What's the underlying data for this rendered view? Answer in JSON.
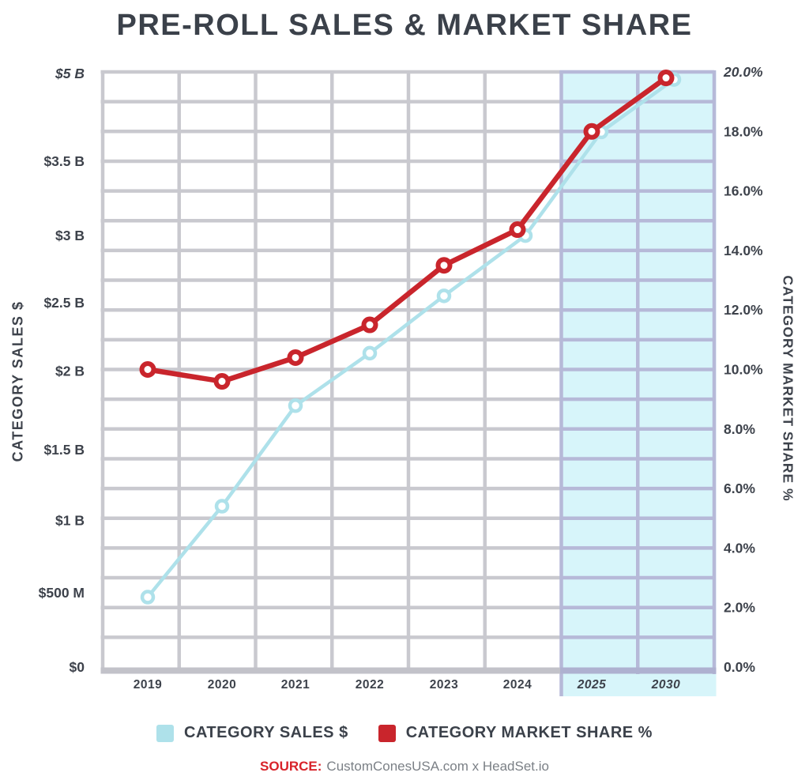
{
  "title": "PRE-ROLL SALES & MARKET SHARE",
  "colors": {
    "background": "#ffffff",
    "title_text": "#3b414a",
    "axis_text": "#3d424b",
    "grid_line": "#c9c9cf",
    "grid_bottom_band": "#c2c2c9",
    "projection_fill": "#d7f5fa",
    "projection_grid_line": "#b6b9d8",
    "projection_bottom_band": "#aeb1d0",
    "sales_line": "#aee1ea",
    "share_line": "#c9252c",
    "marker_core": "#ffffff",
    "source_label": "#d8232a",
    "source_text": "#7b8086"
  },
  "chart_data": {
    "type": "line",
    "title": "PRE-ROLL SALES & MARKET SHARE",
    "categories": [
      {
        "label": "2019",
        "italic": false
      },
      {
        "label": "2020",
        "italic": false
      },
      {
        "label": "2021",
        "italic": false
      },
      {
        "label": "2022",
        "italic": false
      },
      {
        "label": "2023",
        "italic": false
      },
      {
        "label": "2024",
        "italic": false
      },
      {
        "label": "2025",
        "italic": true
      },
      {
        "label": "2030",
        "italic": true
      }
    ],
    "projected_categories": [
      "2025",
      "2030"
    ],
    "grid": {
      "rows": 20,
      "cols": 8,
      "projection_cols": 2,
      "grid_on": true
    },
    "left_axis": {
      "title": "CATEGORY SALES $",
      "unit": "USD",
      "ticks": [
        {
          "label": "$5 B",
          "value_billions": 5.0,
          "pos_pct": 19.95,
          "italic": true
        },
        {
          "label": "$3.5 B",
          "value_billions": 3.5,
          "pos_pct": 17.0,
          "italic": false
        },
        {
          "label": "$3 B",
          "value_billions": 3.0,
          "pos_pct": 14.5,
          "italic": false
        },
        {
          "label": "$2.5 B",
          "value_billions": 2.5,
          "pos_pct": 12.25,
          "italic": false
        },
        {
          "label": "$2 B",
          "value_billions": 2.0,
          "pos_pct": 9.95,
          "italic": false
        },
        {
          "label": "$1.5 B",
          "value_billions": 1.5,
          "pos_pct": 7.3,
          "italic": false
        },
        {
          "label": "$1 B",
          "value_billions": 1.0,
          "pos_pct": 4.93,
          "italic": false
        },
        {
          "label": "$500 M",
          "value_billions": 0.5,
          "pos_pct": 2.5,
          "italic": false
        },
        {
          "label": "$0",
          "value_billions": 0.0,
          "pos_pct": 0.0,
          "italic": false
        }
      ]
    },
    "right_axis": {
      "title": "CATEGORY MARKET SHARE %",
      "min_pct": 0,
      "max_pct": 20,
      "tick_step_pct": 2,
      "ticks": [
        {
          "label": "20.0%",
          "pct": 20,
          "italic": true
        },
        {
          "label": "18.0%",
          "pct": 18,
          "italic": false
        },
        {
          "label": "16.0%",
          "pct": 16,
          "italic": false
        },
        {
          "label": "14.0%",
          "pct": 14,
          "italic": false
        },
        {
          "label": "12.0%",
          "pct": 12,
          "italic": false
        },
        {
          "label": "10.0%",
          "pct": 10,
          "italic": false
        },
        {
          "label": "8.0%",
          "pct": 8,
          "italic": false
        },
        {
          "label": "6.0%",
          "pct": 6,
          "italic": false
        },
        {
          "label": "4.0%",
          "pct": 4,
          "italic": false
        },
        {
          "label": "2.0%",
          "pct": 2,
          "italic": false
        },
        {
          "label": "0.0%",
          "pct": 0,
          "italic": false
        }
      ]
    },
    "series": [
      {
        "name": "CATEGORY SALES $",
        "axis": "left",
        "unit": "billions_usd",
        "color_key": "sales_line",
        "values": [
          0.47,
          1.1,
          1.78,
          2.13,
          2.55,
          3.0,
          4.0,
          4.95
        ]
      },
      {
        "name": "CATEGORY MARKET SHARE %",
        "axis": "right",
        "unit": "percent",
        "color_key": "share_line",
        "values": [
          10.0,
          9.6,
          10.4,
          11.5,
          13.5,
          14.7,
          18.0,
          19.8
        ]
      }
    ]
  },
  "legend": {
    "items": [
      {
        "label": "CATEGORY SALES $",
        "color_key": "sales_line"
      },
      {
        "label": "CATEGORY MARKET SHARE %",
        "color_key": "share_line"
      }
    ]
  },
  "source": {
    "label": "SOURCE:",
    "text": "CustomConesUSA.com x HeadSet.io"
  }
}
